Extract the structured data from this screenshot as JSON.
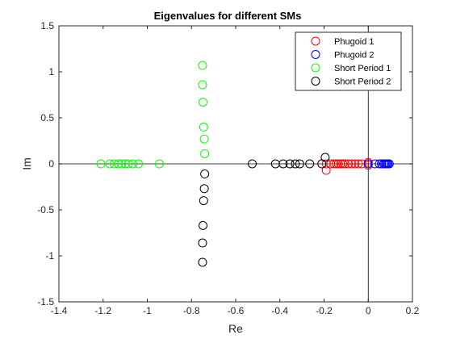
{
  "chart_data": {
    "type": "scatter",
    "title": "Eigenvalues for different SMs",
    "xlabel": "Re",
    "ylabel": "Im",
    "xlim": [
      -1.4,
      0.2
    ],
    "ylim": [
      -1.5,
      1.5
    ],
    "xticks": [
      -1.4,
      -1.2,
      -1,
      -0.8,
      -0.6,
      -0.4,
      -0.2,
      0,
      0.2
    ],
    "xtick_labels": [
      "-1.4",
      "-1.2",
      "-1",
      "-0.8",
      "-0.6",
      "-0.4",
      "-0.2",
      "0",
      "0.2"
    ],
    "yticks": [
      -1.5,
      -1,
      -0.5,
      0,
      0.5,
      1,
      1.5
    ],
    "ytick_labels": [
      "-1.5",
      "-1",
      "-0.5",
      "0",
      "0.5",
      "1",
      "1.5"
    ],
    "grid": false,
    "zero_lines": true,
    "marker": "open-circle",
    "legend_position": "top-right",
    "series": [
      {
        "name": "Phugoid 1",
        "color": "#ff0000",
        "points": [
          [
            -0.19,
            -0.07
          ],
          [
            -0.19,
            0
          ],
          [
            -0.17,
            0
          ],
          [
            -0.155,
            0
          ],
          [
            -0.145,
            0
          ],
          [
            -0.135,
            0
          ],
          [
            -0.125,
            0
          ],
          [
            -0.115,
            0
          ],
          [
            -0.105,
            0
          ],
          [
            -0.09,
            0
          ],
          [
            -0.075,
            0
          ],
          [
            -0.06,
            0
          ],
          [
            -0.045,
            0
          ],
          [
            -0.03,
            0
          ],
          [
            0.0,
            0.015
          ],
          [
            0.0,
            -0.015
          ]
        ]
      },
      {
        "name": "Phugoid 2",
        "color": "#0000ff",
        "points": [
          [
            0.0,
            0
          ],
          [
            0.03,
            0
          ],
          [
            0.05,
            0
          ],
          [
            0.06,
            0
          ],
          [
            0.07,
            0
          ],
          [
            0.075,
            0
          ],
          [
            0.08,
            0
          ],
          [
            0.085,
            0
          ],
          [
            0.09,
            0
          ],
          [
            0.095,
            0
          ]
        ]
      },
      {
        "name": "Short Period 1",
        "color": "#00ff00",
        "points": [
          [
            -1.21,
            0
          ],
          [
            -1.17,
            0
          ],
          [
            -1.15,
            0
          ],
          [
            -1.13,
            0
          ],
          [
            -1.115,
            0
          ],
          [
            -1.1,
            0
          ],
          [
            -1.085,
            0
          ],
          [
            -1.065,
            0
          ],
          [
            -1.04,
            0
          ],
          [
            -0.945,
            0
          ],
          [
            -0.75,
            1.07
          ],
          [
            -0.75,
            0.86
          ],
          [
            -0.748,
            0.67
          ],
          [
            -0.745,
            0.4
          ],
          [
            -0.742,
            0.27
          ],
          [
            -0.74,
            0.11
          ]
        ]
      },
      {
        "name": "Short Period 2",
        "color": "#000000",
        "points": [
          [
            -0.525,
            0
          ],
          [
            -0.42,
            0
          ],
          [
            -0.385,
            0
          ],
          [
            -0.355,
            0
          ],
          [
            -0.33,
            0
          ],
          [
            -0.31,
            0
          ],
          [
            -0.265,
            0
          ],
          [
            -0.21,
            0
          ],
          [
            -0.195,
            0.07
          ],
          [
            -0.74,
            -0.11
          ],
          [
            -0.742,
            -0.27
          ],
          [
            -0.745,
            -0.4
          ],
          [
            -0.748,
            -0.67
          ],
          [
            -0.75,
            -0.86
          ],
          [
            -0.75,
            -1.07
          ]
        ]
      }
    ]
  }
}
